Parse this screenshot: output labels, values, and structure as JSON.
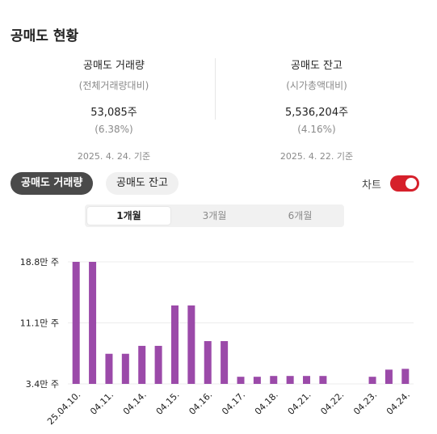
{
  "title": "공매도 현황",
  "stats": [
    {
      "label": "공매도 거래량",
      "sub": "(전체거래량대비)",
      "value": "53,085주",
      "pct": "(6.38%)",
      "date": "2025. 4. 24. 기준"
    },
    {
      "label": "공매도 잔고",
      "sub": "(시가총액대비)",
      "value": "5,536,204주",
      "pct": "(4.16%)",
      "date": "2025. 4. 22. 기준"
    }
  ],
  "tabs": [
    {
      "label": "공매도 거래량",
      "active": true
    },
    {
      "label": "공매도 잔고",
      "active": false
    }
  ],
  "toggle": {
    "label": "차트",
    "on": true
  },
  "periods": [
    {
      "label": "1개월",
      "selected": true
    },
    {
      "label": "3개월",
      "selected": false
    },
    {
      "label": "6개월",
      "selected": false
    }
  ],
  "chart_data": {
    "type": "bar",
    "color": "#9b4aa9",
    "yticks": [
      "18.8만 주",
      "11.1만 주",
      "3.4만 주"
    ],
    "ytick_values": [
      18.8,
      11.1,
      3.4
    ],
    "ylim": [
      3.4,
      18.8
    ],
    "xticks": [
      "25.04.10.",
      "04.11.",
      "04.14.",
      "04.15.",
      "04.16.",
      "04.17.",
      "04.18.",
      "04.21.",
      "04.22.",
      "04.23.",
      "04.24."
    ],
    "values": [
      18.8,
      18.8,
      7.2,
      7.2,
      8.2,
      8.2,
      13.3,
      13.3,
      8.8,
      8.8,
      4.3,
      4.3,
      4.4,
      4.4,
      4.4,
      4.4,
      3.4,
      3.4,
      4.3,
      5.2,
      5.3
    ]
  }
}
